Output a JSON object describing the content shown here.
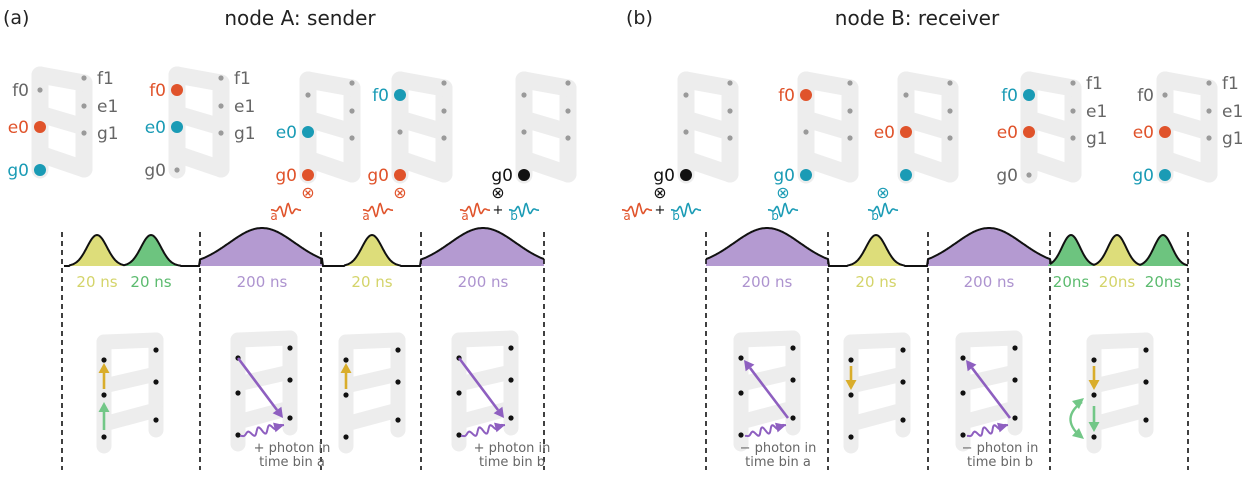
{
  "panel_a": {
    "letter": "(a)",
    "title": "node A: sender",
    "pulse_labels": [
      "20 ns",
      "20 ns",
      "200 ns",
      "20 ns",
      "200 ns"
    ],
    "photon_notes": [
      {
        "line1": "+ photon in",
        "line2": "time bin a"
      },
      {
        "line1": "+ photon in",
        "line2": "time bin b"
      }
    ]
  },
  "panel_b": {
    "letter": "(b)",
    "title": "node B: receiver",
    "pulse_labels": [
      "200 ns",
      "20 ns",
      "200 ns",
      "20ns",
      "20ns",
      "20ns"
    ],
    "photon_notes": [
      {
        "line1": "− photon in",
        "line2": "time bin a"
      },
      {
        "line1": "− photon in",
        "line2": "time bin b"
      }
    ]
  },
  "level_labels": {
    "f0": "f0",
    "e0": "e0",
    "g0": "g0",
    "f1": "f1",
    "e1": "e1",
    "g1": "g1"
  },
  "mode_labels": {
    "a": "a",
    "b": "b",
    "plus": "+",
    "otimes": "⊗"
  },
  "colors": {
    "orange": "#e0532b",
    "teal": "#1a9bb5",
    "yellow": "#dddd7a",
    "yellow_text": "#d4d46a",
    "green": "#6dc47f",
    "green_text": "#5cbb6f",
    "purple": "#b49ad1",
    "purple_text": "#ad93cf",
    "arrow_yellow": "#d9ad2b",
    "arrow_green": "#72c787",
    "arrow_purple": "#8e5fc0",
    "ladder": "#ededed",
    "dot": "#9a9a9a",
    "label_gray": "#666666"
  }
}
